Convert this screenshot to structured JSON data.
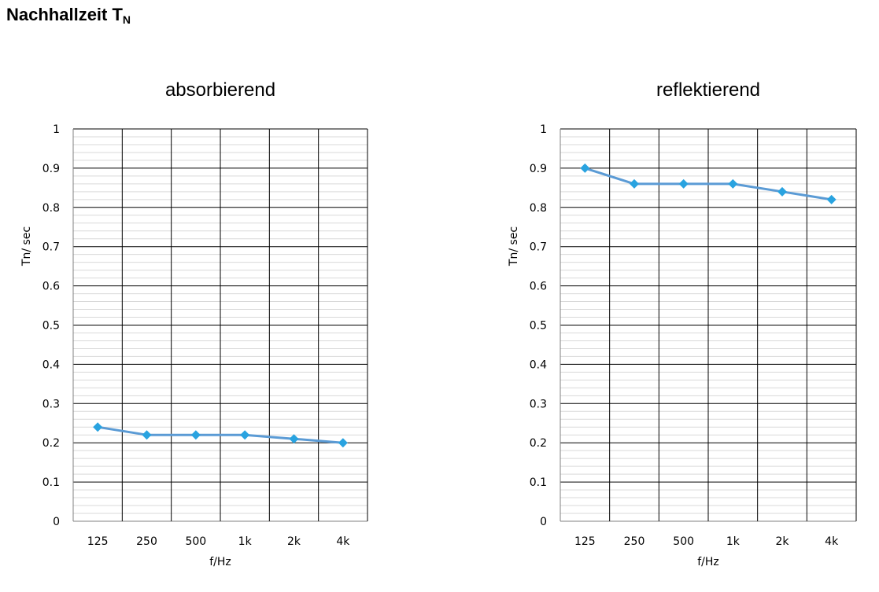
{
  "page": {
    "heading_main": "Nachhallzeit T",
    "heading_sub": "N"
  },
  "chart_data": [
    {
      "type": "line",
      "title": "absorbierend",
      "xlabel": "f/Hz",
      "ylabel": "Tn/ sec",
      "categories": [
        "125",
        "250",
        "500",
        "1k",
        "2k",
        "4k"
      ],
      "values": [
        0.24,
        0.22,
        0.22,
        0.22,
        0.21,
        0.2
      ],
      "ylim": [
        0,
        1
      ],
      "yticks": [
        "0",
        "0.1",
        "0.2",
        "0.3",
        "0.4",
        "0.5",
        "0.6",
        "0.7",
        "0.8",
        "0.9",
        "1"
      ],
      "grid": true,
      "minor_grid": true,
      "legend": "none",
      "line_color": "#5b9bd5",
      "marker_color": "#29a3e0",
      "marker": "diamond"
    },
    {
      "type": "line",
      "title": "reflektierend",
      "xlabel": "f/Hz",
      "ylabel": "Tn/ sec",
      "categories": [
        "125",
        "250",
        "500",
        "1k",
        "2k",
        "4k"
      ],
      "values": [
        0.9,
        0.86,
        0.86,
        0.86,
        0.84,
        0.82
      ],
      "ylim": [
        0,
        1
      ],
      "yticks": [
        "0",
        "0.1",
        "0.2",
        "0.3",
        "0.4",
        "0.5",
        "0.6",
        "0.7",
        "0.8",
        "0.9",
        "1"
      ],
      "grid": true,
      "minor_grid": true,
      "legend": "none",
      "line_color": "#5b9bd5",
      "marker_color": "#29a3e0",
      "marker": "diamond"
    }
  ]
}
